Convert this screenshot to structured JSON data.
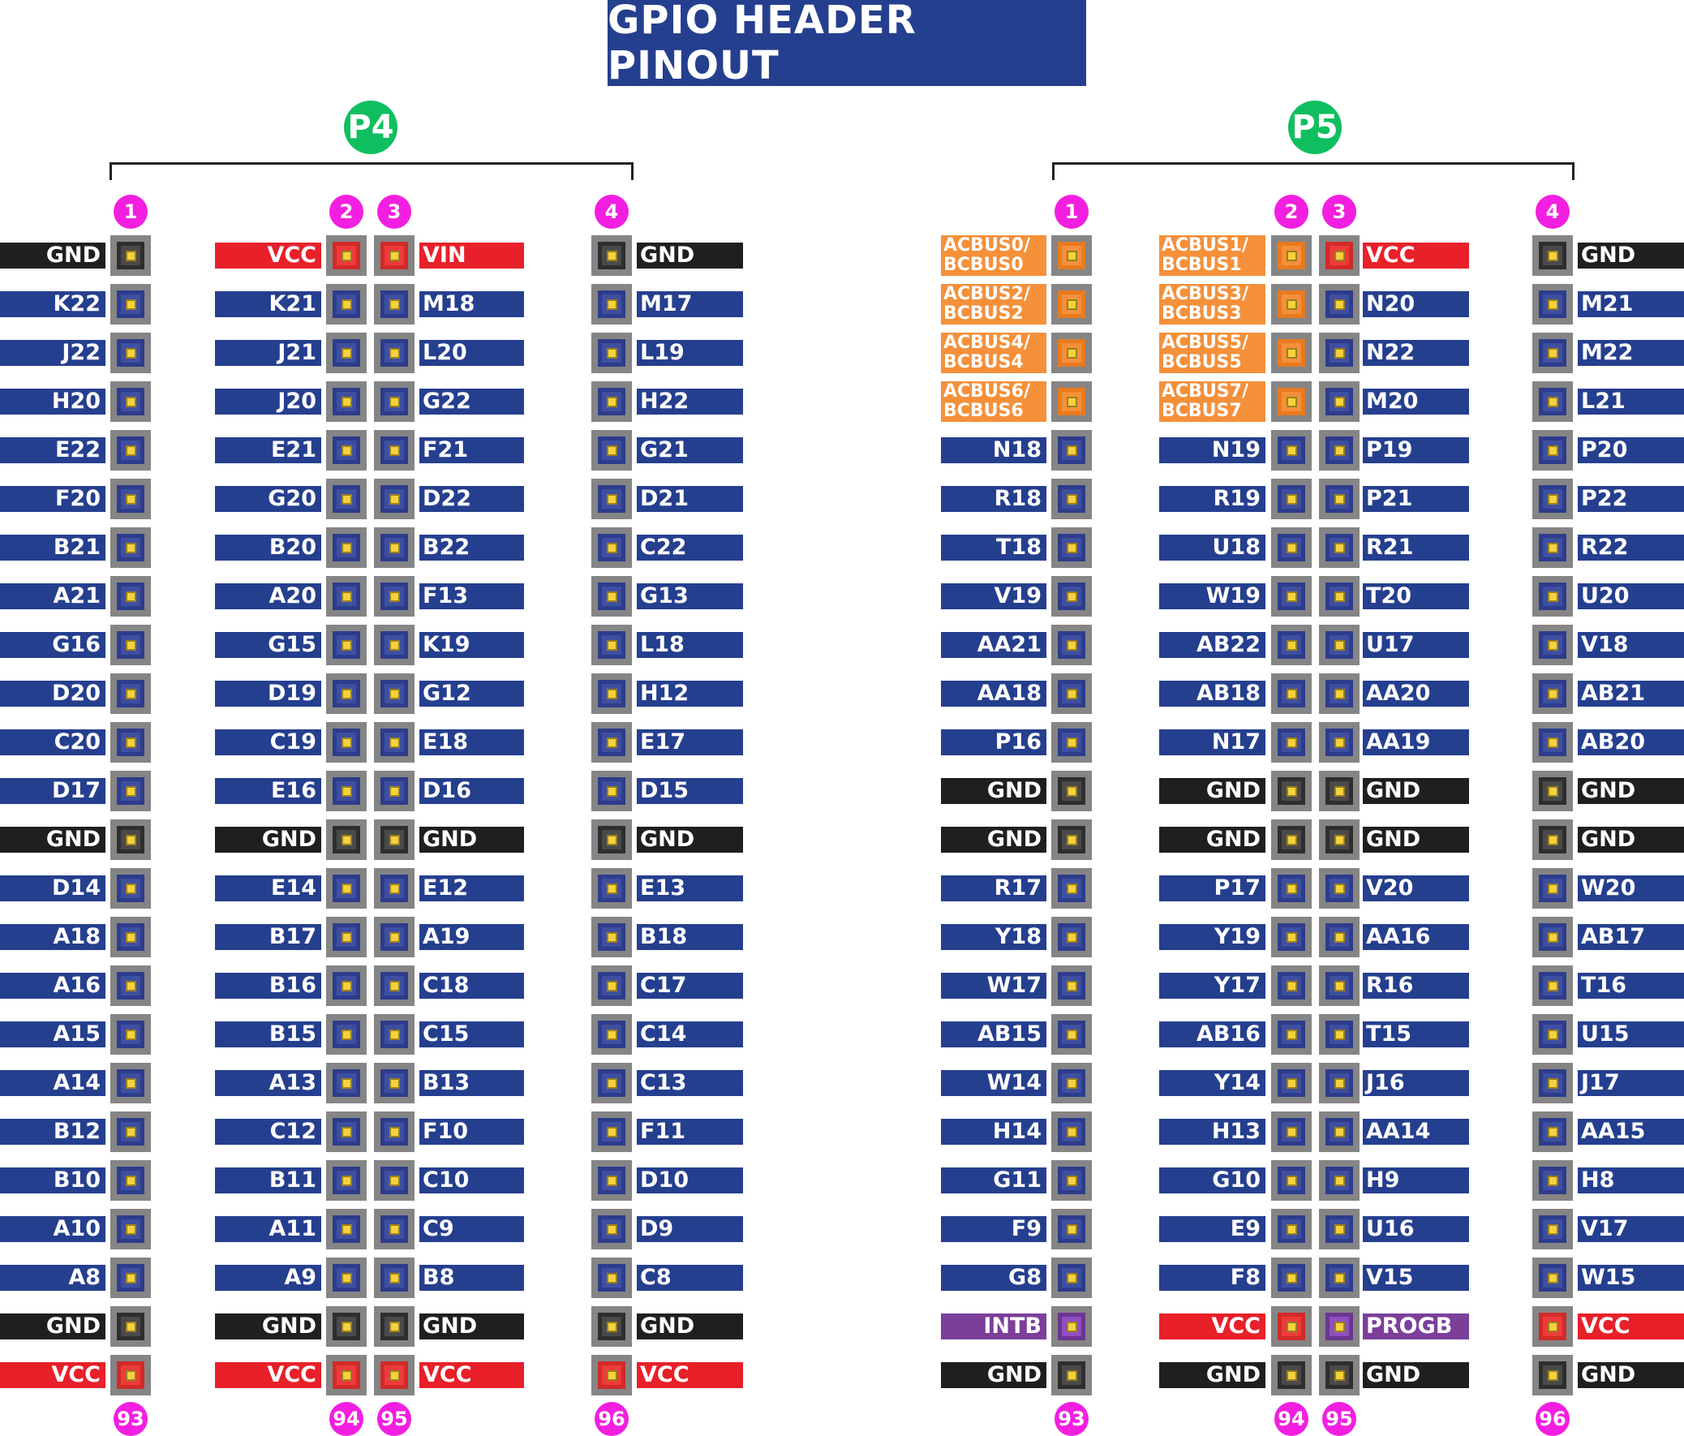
{
  "title": "GPIO HEADER PINOUT",
  "colors": {
    "sig": "#253f8f",
    "gnd": "#1f1f1f",
    "pwr": "#e8202a",
    "bus": "#f5903a",
    "ctl": "#7b3f9a",
    "header": "#0fbf5f",
    "num": "#f21fe0"
  },
  "p4": {
    "name": "P4",
    "col_numbers": [
      "1",
      "2",
      "3",
      "4"
    ],
    "row_end_numbers": [
      "93",
      "94",
      "95",
      "96"
    ],
    "rows": [
      [
        "GND",
        "VCC",
        "VIN",
        "GND"
      ],
      [
        "K22",
        "K21",
        "M18",
        "M17"
      ],
      [
        "J22",
        "J21",
        "L20",
        "L19"
      ],
      [
        "H20",
        "J20",
        "G22",
        "H22"
      ],
      [
        "E22",
        "E21",
        "F21",
        "G21"
      ],
      [
        "F20",
        "G20",
        "D22",
        "D21"
      ],
      [
        "B21",
        "B20",
        "B22",
        "C22"
      ],
      [
        "A21",
        "A20",
        "F13",
        "G13"
      ],
      [
        "G16",
        "G15",
        "K19",
        "L18"
      ],
      [
        "D20",
        "D19",
        "G12",
        "H12"
      ],
      [
        "C20",
        "C19",
        "E18",
        "E17"
      ],
      [
        "D17",
        "E16",
        "D16",
        "D15"
      ],
      [
        "GND",
        "GND",
        "GND",
        "GND"
      ],
      [
        "D14",
        "E14",
        "E12",
        "E13"
      ],
      [
        "A18",
        "B17",
        "A19",
        "B18"
      ],
      [
        "A16",
        "B16",
        "C18",
        "C17"
      ],
      [
        "A15",
        "B15",
        "C15",
        "C14"
      ],
      [
        "A14",
        "A13",
        "B13",
        "C13"
      ],
      [
        "B12",
        "C12",
        "F10",
        "F11"
      ],
      [
        "B10",
        "B11",
        "C10",
        "D10"
      ],
      [
        "A10",
        "A11",
        "C9",
        "D9"
      ],
      [
        "A8",
        "A9",
        "B8",
        "C8"
      ],
      [
        "GND",
        "GND",
        "GND",
        "GND"
      ],
      [
        "VCC",
        "VCC",
        "VCC",
        "VCC"
      ]
    ]
  },
  "p5": {
    "name": "P5",
    "col_numbers": [
      "1",
      "2",
      "3",
      "4"
    ],
    "row_end_numbers": [
      "93",
      "94",
      "95",
      "96"
    ],
    "rows": [
      [
        "ACBUS0/ BCBUS0",
        "ACBUS1/ BCBUS1",
        "VCC",
        "GND"
      ],
      [
        "ACBUS2/ BCBUS2",
        "ACBUS3/ BCBUS3",
        "N20",
        "M21"
      ],
      [
        "ACBUS4/ BCBUS4",
        "ACBUS5/ BCBUS5",
        "N22",
        "M22"
      ],
      [
        "ACBUS6/ BCBUS6",
        "ACBUS7/ BCBUS7",
        "M20",
        "L21"
      ],
      [
        "N18",
        "N19",
        "P19",
        "P20"
      ],
      [
        "R18",
        "R19",
        "P21",
        "P22"
      ],
      [
        "T18",
        "U18",
        "R21",
        "R22"
      ],
      [
        "V19",
        "W19",
        "T20",
        "U20"
      ],
      [
        "AA21",
        "AB22",
        "U17",
        "V18"
      ],
      [
        "AA18",
        "AB18",
        "AA20",
        "AB21"
      ],
      [
        "P16",
        "N17",
        "AA19",
        "AB20"
      ],
      [
        "GND",
        "GND",
        "GND",
        "GND"
      ],
      [
        "GND",
        "GND",
        "GND",
        "GND"
      ],
      [
        "R17",
        "P17",
        "V20",
        "W20"
      ],
      [
        "Y18",
        "Y19",
        "AA16",
        "AB17"
      ],
      [
        "W17",
        "Y17",
        "R16",
        "T16"
      ],
      [
        "AB15",
        "AB16",
        "T15",
        "U15"
      ],
      [
        "W14",
        "Y14",
        "J16",
        "J17"
      ],
      [
        "H14",
        "H13",
        "AA14",
        "AA15"
      ],
      [
        "G11",
        "G10",
        "H9",
        "H8"
      ],
      [
        "F9",
        "E9",
        "U16",
        "V17"
      ],
      [
        "G8",
        "F8",
        "V15",
        "W15"
      ],
      [
        "INTB",
        "VCC",
        "PROGB",
        "VCC"
      ],
      [
        "GND",
        "GND",
        "GND",
        "GND"
      ]
    ]
  }
}
